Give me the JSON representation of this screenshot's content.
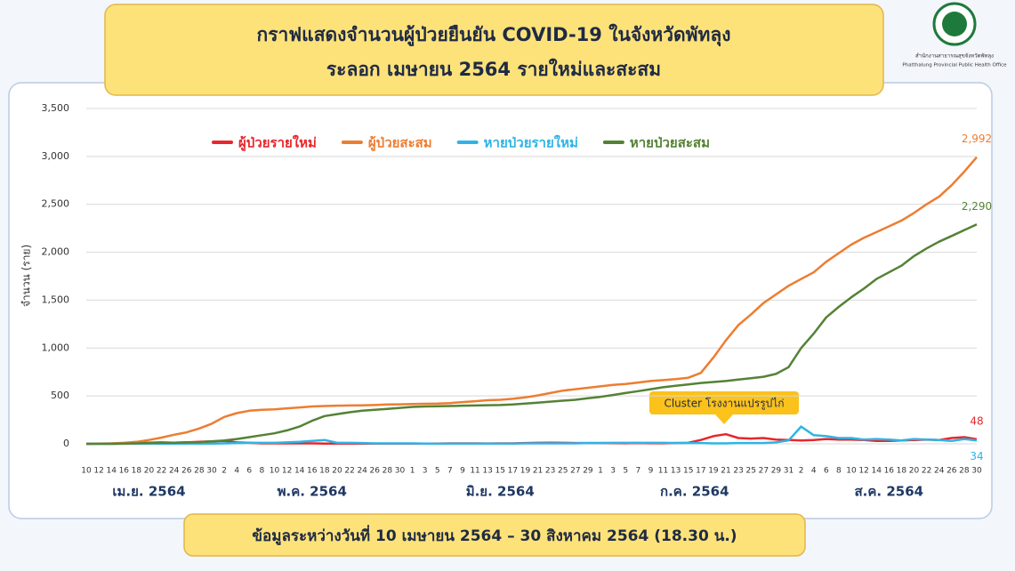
{
  "header": {
    "logo_text": [
      "สำนักงานสาธารณสุขจังหวัดพัทลุง",
      "Phatthalung Provincial Public Health Office"
    ]
  },
  "chart_data": {
    "type": "line",
    "title": "กราฟแสดงจำนวนผู้ป่วยยืนยัน COVID-19 ในจังหวัดพัทลุง",
    "subtitle": "ระลอก เมษายน 2564 รายใหม่และสะสม",
    "y_label": "จำนวน (ราย)",
    "note": "ข้อมูลระหว่างวันที่ 10 เมษายน 2564 – 30 สิงหาคม 2564 (18.30 น.)",
    "annotation": "Cluster โรงงานแปรรูปไก่",
    "month_labels": [
      "เม.ย. 2564",
      "พ.ค. 2564",
      "มิ.ย. 2564",
      "ก.ค. 2564",
      "ส.ค. 2564"
    ],
    "categories": [
      "10",
      "12",
      "14",
      "16",
      "18",
      "20",
      "22",
      "24",
      "26",
      "28",
      "30",
      "2",
      "4",
      "6",
      "8",
      "10",
      "12",
      "14",
      "16",
      "18",
      "20",
      "22",
      "24",
      "26",
      "28",
      "30",
      "1",
      "3",
      "5",
      "7",
      "9",
      "11",
      "13",
      "15",
      "17",
      "19",
      "21",
      "23",
      "25",
      "27",
      "29",
      "1",
      "3",
      "5",
      "7",
      "9",
      "11",
      "13",
      "15",
      "17",
      "19",
      "21",
      "23",
      "25",
      "27",
      "29",
      "31",
      "2",
      "4",
      "6",
      "8",
      "10",
      "12",
      "14",
      "16",
      "18",
      "20",
      "22",
      "24",
      "26",
      "28",
      "30"
    ],
    "ylim": [
      0,
      3500
    ],
    "yticks": [
      0,
      500,
      {
        "value": 1000,
        "label": "1,000"
      },
      {
        "value": 1500,
        "label": "1,500"
      },
      {
        "value": 2000,
        "label": "2,000"
      },
      {
        "value": 2500,
        "label": "2,500"
      },
      {
        "value": 3000,
        "label": "3,000"
      },
      {
        "value": 3500,
        "label": "3,500"
      }
    ],
    "grid": true,
    "series": [
      {
        "name": "ผู้ป่วยรายใหม่",
        "color": "#e8262b",
        "values": [
          0,
          2,
          3,
          5,
          8,
          12,
          15,
          12,
          15,
          20,
          25,
          30,
          15,
          10,
          5,
          5,
          5,
          5,
          5,
          3,
          2,
          2,
          2,
          3,
          3,
          2,
          2,
          2,
          3,
          5,
          5,
          5,
          4,
          5,
          5,
          8,
          10,
          12,
          10,
          8,
          8,
          8,
          7,
          6,
          8,
          6,
          6,
          8,
          10,
          40,
          80,
          100,
          60,
          55,
          60,
          45,
          40,
          35,
          40,
          50,
          45,
          45,
          40,
          30,
          30,
          35,
          40,
          45,
          40,
          60,
          70,
          48
        ],
        "value_labels": [
          null,
          null,
          null,
          null,
          null,
          null,
          null,
          null,
          null,
          null,
          null,
          null,
          null,
          null,
          null,
          null,
          null,
          null,
          null,
          null,
          null,
          null,
          null,
          null,
          null,
          null,
          null,
          null,
          null,
          null,
          null,
          null,
          null,
          null,
          null,
          null,
          null,
          null,
          null,
          null,
          null,
          null,
          null,
          null,
          null,
          null,
          null,
          null,
          null,
          null,
          null,
          null,
          null,
          null,
          null,
          null,
          null,
          null,
          null,
          null,
          null,
          null,
          null,
          null,
          null,
          null,
          null,
          null,
          null,
          null,
          null,
          "48"
        ]
      },
      {
        "name": "ผู้ป่วยสะสม",
        "color": "#ed7d31",
        "values": [
          0,
          2,
          5,
          10,
          20,
          40,
          65,
          95,
          120,
          160,
          210,
          280,
          320,
          345,
          355,
          360,
          370,
          380,
          390,
          395,
          398,
          400,
          402,
          405,
          410,
          412,
          415,
          418,
          420,
          425,
          435,
          445,
          455,
          460,
          470,
          485,
          505,
          530,
          555,
          570,
          585,
          600,
          615,
          625,
          640,
          655,
          665,
          675,
          690,
          740,
          900,
          1080,
          1240,
          1350,
          1470,
          1560,
          1650,
          1720,
          1790,
          1900,
          1990,
          2080,
          2150,
          2210,
          2270,
          2330,
          2410,
          2500,
          2580,
          2700,
          2840,
          2992
        ],
        "value_labels": [
          null,
          null,
          null,
          null,
          null,
          null,
          null,
          null,
          null,
          null,
          null,
          null,
          null,
          null,
          null,
          null,
          null,
          null,
          null,
          null,
          null,
          null,
          null,
          null,
          null,
          null,
          null,
          null,
          null,
          null,
          null,
          null,
          null,
          null,
          null,
          null,
          null,
          null,
          null,
          null,
          null,
          null,
          null,
          null,
          null,
          null,
          null,
          null,
          null,
          null,
          null,
          null,
          null,
          null,
          null,
          null,
          null,
          null,
          null,
          null,
          null,
          null,
          null,
          null,
          null,
          null,
          null,
          null,
          null,
          null,
          null,
          "2,992"
        ]
      },
      {
        "name": "หายป่วยรายใหม่",
        "color": "#2eb4e6",
        "values": [
          0,
          0,
          0,
          1,
          2,
          2,
          1,
          1,
          2,
          2,
          3,
          5,
          8,
          10,
          10,
          10,
          15,
          20,
          30,
          40,
          10,
          10,
          8,
          5,
          5,
          5,
          5,
          3,
          1,
          2,
          2,
          2,
          2,
          2,
          3,
          5,
          5,
          5,
          5,
          5,
          8,
          8,
          10,
          10,
          10,
          10,
          10,
          8,
          8,
          8,
          5,
          5,
          8,
          8,
          8,
          15,
          35,
          180,
          90,
          80,
          60,
          60,
          45,
          50,
          45,
          35,
          50,
          45,
          40,
          30,
          50,
          34
        ],
        "value_labels": [
          null,
          null,
          null,
          null,
          null,
          null,
          null,
          null,
          null,
          null,
          null,
          null,
          null,
          null,
          null,
          null,
          null,
          null,
          null,
          null,
          null,
          null,
          null,
          null,
          null,
          null,
          null,
          null,
          null,
          null,
          null,
          null,
          null,
          null,
          null,
          null,
          null,
          null,
          null,
          null,
          null,
          null,
          null,
          null,
          null,
          null,
          null,
          null,
          null,
          null,
          null,
          null,
          null,
          null,
          null,
          null,
          null,
          null,
          null,
          null,
          null,
          null,
          null,
          null,
          null,
          null,
          null,
          null,
          null,
          null,
          null,
          "34"
        ]
      },
      {
        "name": "หายป่วยสะสม",
        "color": "#548235",
        "values": [
          0,
          0,
          0,
          2,
          5,
          8,
          10,
          12,
          15,
          18,
          25,
          35,
          50,
          70,
          90,
          110,
          140,
          180,
          240,
          290,
          310,
          330,
          345,
          355,
          365,
          375,
          385,
          390,
          392,
          395,
          398,
          400,
          403,
          405,
          410,
          420,
          430,
          440,
          450,
          460,
          475,
          490,
          510,
          530,
          550,
          570,
          590,
          605,
          620,
          635,
          645,
          655,
          670,
          685,
          700,
          730,
          800,
          1000,
          1150,
          1320,
          1430,
          1530,
          1620,
          1720,
          1790,
          1860,
          1960,
          2040,
          2110,
          2170,
          2230,
          2290
        ],
        "value_labels": [
          null,
          null,
          null,
          null,
          null,
          null,
          null,
          null,
          null,
          null,
          null,
          null,
          null,
          null,
          null,
          null,
          null,
          null,
          null,
          null,
          null,
          null,
          null,
          null,
          null,
          null,
          null,
          null,
          null,
          null,
          null,
          null,
          null,
          null,
          null,
          null,
          null,
          null,
          null,
          null,
          null,
          null,
          null,
          null,
          null,
          null,
          null,
          null,
          null,
          null,
          null,
          null,
          null,
          null,
          null,
          null,
          null,
          null,
          null,
          null,
          null,
          null,
          null,
          null,
          null,
          null,
          null,
          null,
          null,
          null,
          null,
          "2,290"
        ]
      }
    ]
  }
}
